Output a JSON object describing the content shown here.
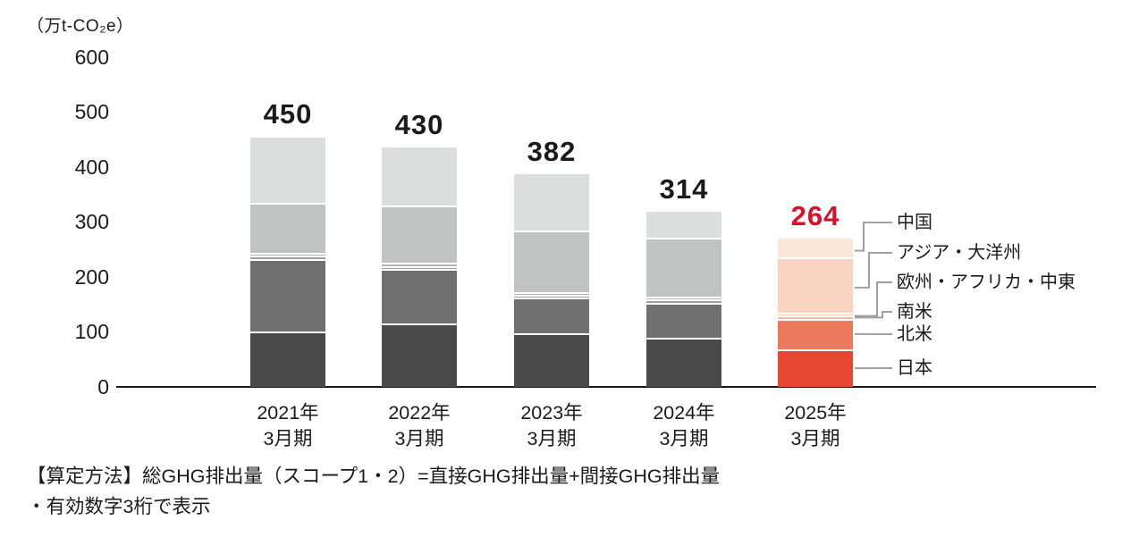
{
  "chart_data": {
    "type": "bar",
    "stacked": true,
    "unit_label": "（万t-CO₂e）",
    "ylim": [
      0,
      600
    ],
    "yticks": [
      600,
      500,
      400,
      300,
      200,
      100,
      0
    ],
    "categories": [
      [
        "2021年",
        "3月期"
      ],
      [
        "2022年",
        "3月期"
      ],
      [
        "2023年",
        "3月期"
      ],
      [
        "2024年",
        "3月期"
      ],
      [
        "2025年",
        "3月期"
      ]
    ],
    "totals": [
      450,
      430,
      382,
      314,
      264
    ],
    "highlight_index": 4,
    "series": [
      {
        "name": "日本",
        "values": [
          100,
          116,
          98,
          90,
          68
        ],
        "color_gray": "#4a4a4a",
        "color_highlight": "#e64733"
      },
      {
        "name": "北米",
        "values": [
          133,
          98,
          64,
          63,
          56
        ],
        "color_gray": "#707070",
        "color_highlight": "#ee7a5e"
      },
      {
        "name": "南米",
        "values": [
          5,
          4,
          4,
          4,
          4
        ],
        "color_gray": "#a0a0a0",
        "color_highlight": "#f2bca8"
      },
      {
        "name": "欧州・アフリカ・中東",
        "values": [
          2,
          2,
          2,
          2,
          2
        ],
        "color_gray": "#b5b5b5",
        "color_highlight": "#f6c9b4"
      },
      {
        "name": "アジア・大洋州",
        "values": [
          90,
          105,
          112,
          107,
          101
        ],
        "color_gray": "#c1c2c2",
        "color_highlight": "#f8d3c1"
      },
      {
        "name": "中国",
        "values": [
          120,
          105,
          102,
          48,
          33
        ],
        "color_gray": "#dcdddd",
        "color_highlight": "#fbe6da"
      }
    ],
    "legend": [
      "中国",
      "アジア・大洋州",
      "欧州・アフリカ・中東",
      "南米",
      "北米",
      "日本"
    ],
    "value_label_color": "#1a1a1a",
    "highlight_value_color": "#d8112b",
    "leader_line_color": "#a0a0a0",
    "axis_color": "#1a1a1a"
  },
  "footnotes": [
    "【算定方法】総GHG排出量（スコープ1・2）=直接GHG排出量+間接GHG排出量",
    "・有効数字3桁で表示"
  ]
}
